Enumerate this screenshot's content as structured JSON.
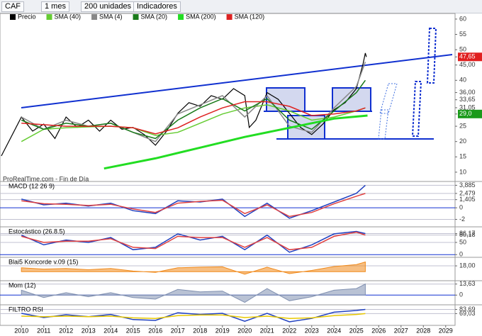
{
  "toolbar": {
    "symbol": "CAF",
    "period": "1 mes",
    "units": "200 unidades",
    "indicators": "Indicadores"
  },
  "chart_data": [
    {
      "type": "line",
      "annotation": "ProRealTime.com - Fin de Día",
      "xlim": [
        2009.04,
        2029.42
      ],
      "xticks": [
        2010,
        2011,
        2012,
        2013,
        2014,
        2015,
        2016,
        2017,
        2018,
        2019,
        2020,
        2021,
        2022,
        2023,
        2024,
        2025,
        2026,
        2027,
        2028,
        2029
      ],
      "ylim": [
        6.5,
        61.6
      ],
      "yticks": [
        10,
        15,
        20,
        25,
        {
          "value": 29,
          "label": "29,0",
          "color": "#1a9a1a"
        },
        {
          "value": 31.05,
          "label": "31,05"
        },
        {
          "value": 33.65,
          "label": "33,65"
        },
        {
          "value": 36,
          "label": "36,00"
        },
        40,
        {
          "value": 45,
          "label": "45,00"
        },
        {
          "value": 47.65,
          "label": "47,65",
          "color": "#e02020"
        },
        50,
        55,
        60
      ],
      "series": [
        {
          "name": "Precio",
          "color": "#000000",
          "x": [
            2009.1,
            2010,
            2010.5,
            2011,
            2011.5,
            2012,
            2012.5,
            2013,
            2013.5,
            2014,
            2014.5,
            2015,
            2015.5,
            2016,
            2016.5,
            2017,
            2017.5,
            2018,
            2018.5,
            2019,
            2019.5,
            2020,
            2020.2,
            2020.5,
            2021,
            2021.5,
            2022,
            2022.5,
            2023,
            2023.5,
            2024,
            2024.5,
            2025,
            2025.3,
            2025.4,
            2025.45
          ],
          "values": [
            15.3,
            28,
            23.4,
            25.7,
            21,
            28,
            24.6,
            27,
            23.4,
            27,
            24,
            24.6,
            22.3,
            18.8,
            23.4,
            29.2,
            32.7,
            31.5,
            35,
            33.8,
            37.3,
            35,
            24.6,
            27,
            36,
            33.8,
            29.2,
            24.6,
            22.3,
            25.7,
            30.4,
            32.7,
            37.3,
            45.4,
            48.9,
            47.65
          ]
        },
        {
          "name": "SMA (40)",
          "color": "#66cc33",
          "x": [
            2010,
            2011,
            2012,
            2013,
            2014,
            2015,
            2016,
            2017,
            2018,
            2019,
            2020,
            2021,
            2022,
            2023,
            2024,
            2025,
            2025.4
          ],
          "values": [
            20,
            24,
            24.5,
            24.8,
            25,
            24.5,
            22,
            23,
            26,
            29,
            31,
            32,
            30,
            27,
            28,
            30,
            31
          ]
        },
        {
          "name": "SMA (4)",
          "color": "#888888",
          "x": [
            2010,
            2011,
            2012,
            2013,
            2014,
            2015,
            2016,
            2017,
            2018,
            2019,
            2020,
            2021,
            2022,
            2023,
            2024,
            2025,
            2025.4
          ],
          "values": [
            28,
            24,
            27,
            25,
            26,
            23,
            20,
            29,
            32,
            35,
            28,
            35,
            25,
            23,
            31,
            38,
            46
          ]
        },
        {
          "name": "SMA (20)",
          "color": "#1a7a1a",
          "x": [
            2010,
            2011,
            2012,
            2013,
            2014,
            2015,
            2016,
            2017,
            2018,
            2019,
            2020,
            2021,
            2022,
            2023,
            2024,
            2025,
            2025.4
          ],
          "values": [
            27,
            24,
            26,
            25,
            26,
            23,
            21,
            27,
            31,
            34,
            30,
            34,
            27,
            24,
            30,
            36,
            40
          ]
        },
        {
          "name": "SMA (200)",
          "color": "#22dd22",
          "x": [
            2013.7,
            2016,
            2018,
            2020,
            2022,
            2024,
            2025.5
          ],
          "values": [
            11.2,
            14.5,
            18,
            21.5,
            24.5,
            27.5,
            28.5
          ]
        },
        {
          "name": "SMA (120)",
          "color": "#dd2222",
          "x": [
            2010,
            2011,
            2012,
            2013,
            2014,
            2015,
            2016,
            2017,
            2018,
            2019,
            2020,
            2021,
            2022,
            2023,
            2024,
            2025,
            2025.4
          ],
          "values": [
            26,
            25.5,
            25,
            25,
            25,
            24.5,
            22.5,
            24.5,
            28,
            31,
            33,
            33,
            31.5,
            28.5,
            29,
            30,
            31
          ]
        }
      ]
    },
    {
      "type": "line",
      "title": "MACD (12 26 9)",
      "ylim": [
        -2.8,
        4.3
      ],
      "yticks": [
        {
          "value": 3.885,
          "label": "3,885"
        },
        {
          "value": 2.479,
          "label": "2,479"
        },
        {
          "value": 1.405,
          "label": "1,405"
        },
        0,
        -2
      ],
      "series": [
        {
          "color": "#2040c0",
          "x": [
            2010,
            2011,
            2012,
            2013,
            2014,
            2015,
            2016,
            2017,
            2018,
            2019,
            2020,
            2021,
            2022,
            2023,
            2024,
            2025,
            2025.4
          ],
          "values": [
            1.5,
            0.5,
            0.8,
            0.3,
            0.8,
            -0.5,
            -1,
            1.2,
            1,
            1.5,
            -1.5,
            0.8,
            -1.8,
            -0.5,
            1,
            2.5,
            3.885
          ]
        },
        {
          "color": "#e04040",
          "x": [
            2010,
            2011,
            2012,
            2013,
            2014,
            2015,
            2016,
            2017,
            2018,
            2019,
            2020,
            2021,
            2022,
            2023,
            2024,
            2025,
            2025.4
          ],
          "values": [
            1.2,
            0.7,
            0.6,
            0.4,
            0.6,
            -0.2,
            -0.8,
            0.8,
            1.1,
            1.3,
            -1,
            0.5,
            -1.5,
            -0.8,
            0.7,
            2,
            2.479
          ]
        }
      ]
    },
    {
      "type": "line",
      "title": "Estocástico (26.8.5)",
      "ylim": [
        -8,
        108
      ],
      "yticks": [
        {
          "value": 86.17,
          "label": "86,17"
        },
        {
          "value": 80.18,
          "label": "80,18"
        },
        50,
        0
      ],
      "series": [
        {
          "color": "#2040c0",
          "x": [
            2010,
            2011,
            2012,
            2013,
            2014,
            2015,
            2016,
            2017,
            2018,
            2019,
            2020,
            2021,
            2022,
            2023,
            2024,
            2025,
            2025.4
          ],
          "values": [
            80,
            40,
            60,
            50,
            70,
            20,
            30,
            85,
            60,
            75,
            20,
            80,
            10,
            40,
            85,
            95,
            86.17
          ]
        },
        {
          "color": "#e04040",
          "x": [
            2010,
            2011,
            2012,
            2013,
            2014,
            2015,
            2016,
            2017,
            2018,
            2019,
            2020,
            2021,
            2022,
            2023,
            2024,
            2025,
            2025.4
          ],
          "values": [
            75,
            50,
            55,
            55,
            65,
            30,
            25,
            75,
            70,
            70,
            30,
            70,
            20,
            30,
            75,
            92,
            80.18
          ]
        }
      ]
    },
    {
      "type": "area",
      "title": "Blai5 Koncorde v.09 (15)",
      "ylim": [
        -30,
        40
      ],
      "yticks": [
        {
          "value": 18,
          "label": "18,00"
        }
      ],
      "series": [
        {
          "color": "#f08a1c",
          "x": [
            2010,
            2011,
            2012,
            2013,
            2014,
            2015,
            2016,
            2017,
            2018,
            2019,
            2020,
            2021,
            2022,
            2023,
            2024,
            2025,
            2025.4
          ],
          "values": [
            12,
            8,
            10,
            6,
            10,
            2,
            -2,
            12,
            14,
            15,
            -8,
            14,
            -6,
            4,
            16,
            22,
            30
          ]
        }
      ]
    },
    {
      "type": "area",
      "title": "Mom (12)",
      "ylim": [
        -12,
        16
      ],
      "yticks": [
        {
          "value": 13.63,
          "label": "13,63"
        },
        0
      ],
      "series": [
        {
          "color": "#8090b0",
          "x": [
            2010,
            2011,
            2012,
            2013,
            2014,
            2015,
            2016,
            2017,
            2018,
            2019,
            2020,
            2021,
            2022,
            2023,
            2024,
            2025,
            2025.4
          ],
          "values": [
            6,
            -3,
            3,
            -2,
            3,
            -3,
            -5,
            7,
            4,
            5,
            -9,
            8,
            -7,
            -2,
            6,
            8,
            13.63
          ]
        }
      ]
    },
    {
      "type": "line",
      "title": "FILTRO RSI",
      "ylim": [
        30,
        95
      ],
      "yticks": [
        {
          "value": 83.69,
          "label": "83,69"
        },
        {
          "value": 69.03,
          "label": "69,03"
        }
      ],
      "series": [
        {
          "color": "#2040c0",
          "x": [
            2010,
            2011,
            2012,
            2013,
            2014,
            2015,
            2016,
            2017,
            2018,
            2019,
            2020,
            2021,
            2022,
            2023,
            2024,
            2025,
            2025.4
          ],
          "values": [
            70,
            55,
            65,
            58,
            66,
            48,
            45,
            72,
            66,
            70,
            42,
            70,
            40,
            52,
            74,
            80,
            83.69
          ]
        },
        {
          "color": "#e8c800",
          "x": [
            2010,
            2011,
            2012,
            2013,
            2014,
            2015,
            2016,
            2017,
            2018,
            2019,
            2020,
            2021,
            2022,
            2023,
            2024,
            2025,
            2025.4
          ],
          "values": [
            60,
            58,
            60,
            58,
            60,
            54,
            52,
            62,
            64,
            64,
            55,
            60,
            52,
            54,
            62,
            66,
            69.03
          ]
        }
      ]
    }
  ]
}
